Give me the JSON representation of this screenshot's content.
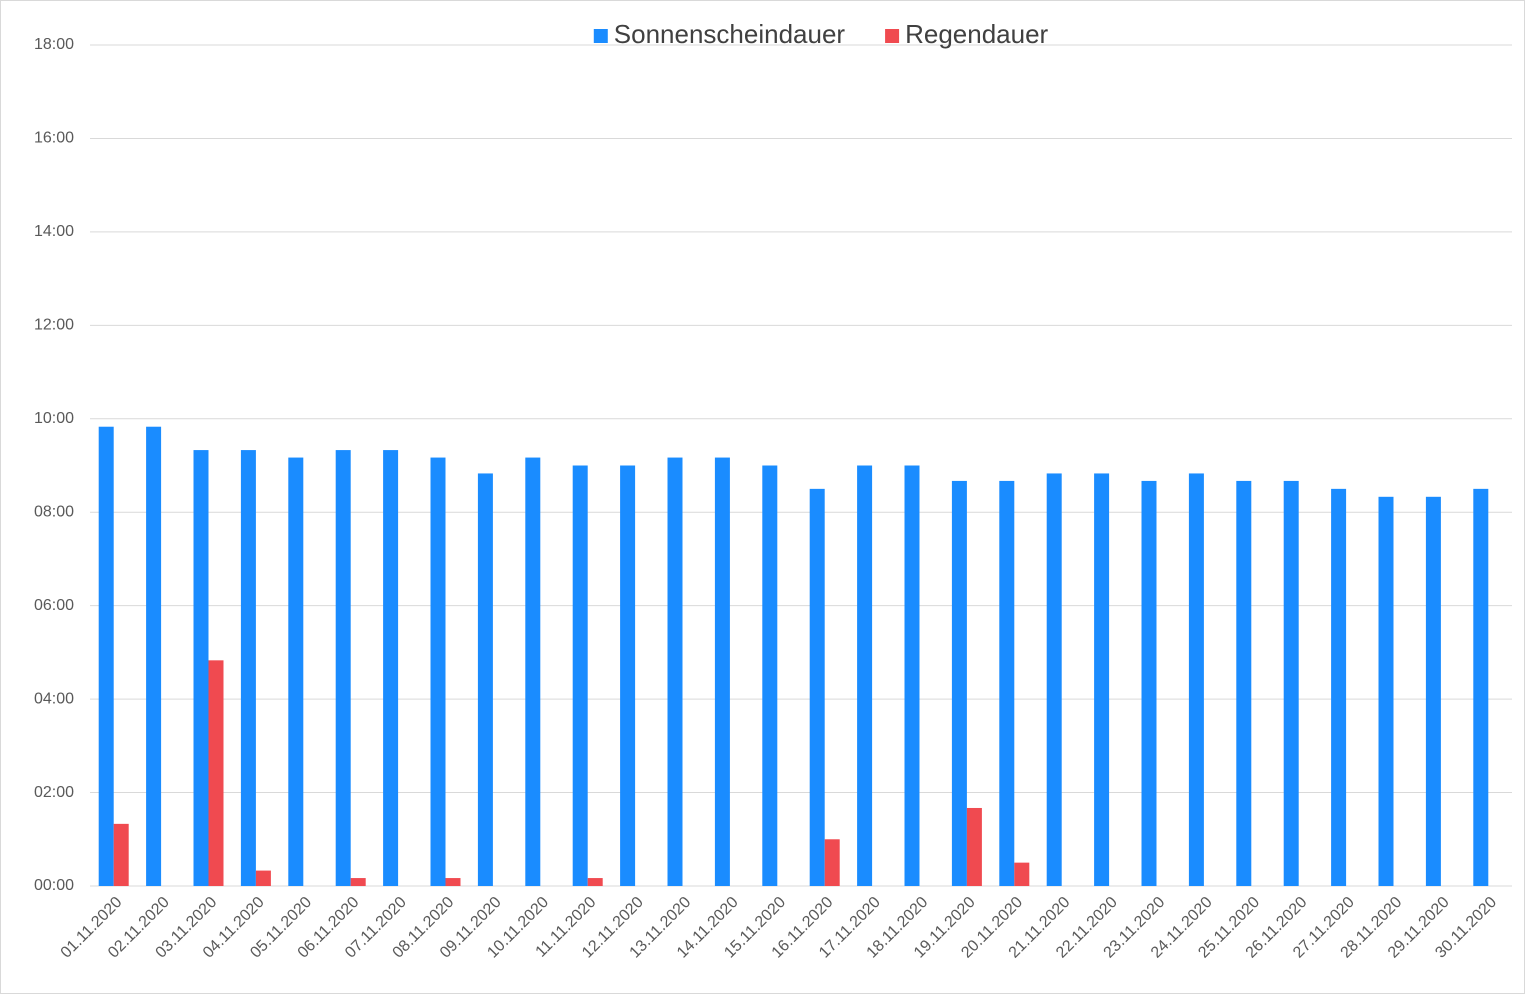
{
  "chart_data": {
    "type": "bar",
    "categories": [
      "01.11.2020",
      "02.11.2020",
      "03.11.2020",
      "04.11.2020",
      "05.11.2020",
      "06.11.2020",
      "07.11.2020",
      "08.11.2020",
      "09.11.2020",
      "10.11.2020",
      "11.11.2020",
      "12.11.2020",
      "13.11.2020",
      "14.11.2020",
      "15.11.2020",
      "16.11.2020",
      "17.11.2020",
      "18.11.2020",
      "19.11.2020",
      "20.11.2020",
      "21.11.2020",
      "22.11.2020",
      "23.11.2020",
      "24.11.2020",
      "25.11.2020",
      "26.11.2020",
      "27.11.2020",
      "28.11.2020",
      "29.11.2020",
      "30.11.2020"
    ],
    "series": [
      {
        "name": "Sonnenscheindauer",
        "color": "#1a8cff",
        "values": [
          9.83,
          9.83,
          9.33,
          9.33,
          9.17,
          9.33,
          9.33,
          9.17,
          8.83,
          9.17,
          9.0,
          9.0,
          9.17,
          9.17,
          9.0,
          8.5,
          9.0,
          9.0,
          8.67,
          8.67,
          8.83,
          8.83,
          8.67,
          8.83,
          8.67,
          8.67,
          8.5,
          8.33,
          8.33,
          8.5
        ]
      },
      {
        "name": "Regendauer",
        "color": "#f04a50",
        "values": [
          1.33,
          0,
          4.83,
          0.33,
          0,
          0.17,
          0,
          0.17,
          0,
          0,
          0.17,
          0,
          0,
          0,
          0,
          1.0,
          0,
          0,
          1.67,
          0.5,
          0,
          0,
          0,
          0,
          0,
          0,
          0,
          0,
          0,
          0
        ]
      }
    ],
    "ylim": [
      0,
      18
    ],
    "yticks": [
      {
        "value": 0,
        "label": "00:00"
      },
      {
        "value": 2,
        "label": "02:00"
      },
      {
        "value": 4,
        "label": "04:00"
      },
      {
        "value": 6,
        "label": "06:00"
      },
      {
        "value": 8,
        "label": "08:00"
      },
      {
        "value": 10,
        "label": "10:00"
      },
      {
        "value": 12,
        "label": "12:00"
      },
      {
        "value": 14,
        "label": "14:00"
      },
      {
        "value": 16,
        "label": "16:00"
      },
      {
        "value": 18,
        "label": "18:00"
      }
    ],
    "grid": true,
    "legend": "top"
  }
}
